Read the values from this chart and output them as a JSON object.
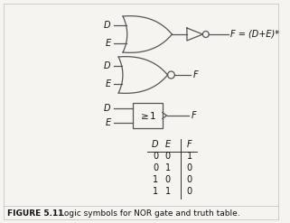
{
  "title": "FIGURE 5.11",
  "caption": "Logic symbols for NOR gate and truth table.",
  "bg_color": "#f5f4f0",
  "gate_color": "#555555",
  "line_color": "#555555",
  "text_color": "#111111",
  "border_color": "#bbbbbb",
  "truth_table": {
    "headers": [
      "D",
      "E",
      "F"
    ],
    "rows": [
      [
        0,
        0,
        1
      ],
      [
        0,
        1,
        0
      ],
      [
        1,
        0,
        0
      ],
      [
        1,
        1,
        0
      ]
    ]
  },
  "equation": "F = (D+E)*"
}
